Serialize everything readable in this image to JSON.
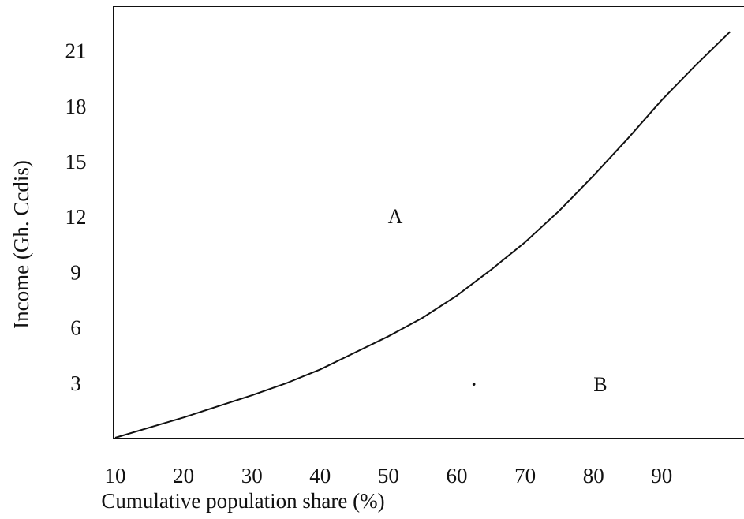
{
  "chart_data": {
    "type": "line",
    "title": "",
    "xlabel": "Cumulative population share (%)",
    "ylabel": "Income (Gh. Ccdis)",
    "x_ticks": [
      "10",
      "20",
      "30",
      "40",
      "50",
      "60",
      "70",
      "80",
      "90"
    ],
    "y_ticks": [
      "3",
      "6",
      "9",
      "12",
      "15",
      "18",
      "21"
    ],
    "xlim": [
      10,
      100
    ],
    "ylim": [
      0,
      22
    ],
    "grid": false,
    "series": [
      {
        "x": [
          10,
          15,
          20,
          25,
          30,
          35,
          40,
          45,
          50,
          55,
          60,
          65,
          70,
          75,
          80,
          85,
          90,
          95,
          100
        ],
        "y": [
          0,
          0.55,
          1.1,
          1.7,
          2.3,
          2.95,
          3.7,
          4.6,
          5.5,
          6.5,
          7.7,
          9.1,
          10.6,
          12.3,
          14.2,
          16.2,
          18.3,
          20.2,
          22
        ]
      }
    ],
    "annotations": [
      {
        "text": "A",
        "x": 51,
        "y": 12
      },
      {
        "text": "B",
        "x": 81,
        "y": 2.9
      }
    ],
    "stray_mark": {
      "x": 62.5,
      "y": 2.9
    },
    "colors": {
      "line": "#111111",
      "frame": "#111111",
      "background": "#ffffff"
    }
  }
}
